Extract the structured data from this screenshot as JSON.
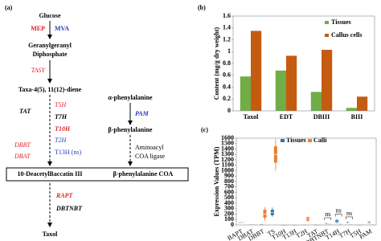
{
  "diagram": {
    "panel_label": "(a)",
    "nodes": {
      "glucose": "Glucose",
      "ggpp": [
        "Geranylgeranyl",
        "Diphosphate"
      ],
      "taxadiene": "Taxa-4(5), 11(12)-diene",
      "alpha_phe": "α-phenylalanine",
      "beta_phe": "β-phenylalanine",
      "dab": "10-DeacetylBaccatin III",
      "beta_phe_coa": "β-phenylalanine COA",
      "taxol": "Taxol"
    },
    "enzymes": {
      "mep": "MEP",
      "mva": "MVA",
      "tasy": "TASY",
      "t5h": "T5H",
      "tat": "TAT",
      "t7h": "T7H",
      "t10h": "T10H",
      "t2h": "T2H",
      "dbbt": "DBBT",
      "dbat": "DBAT",
      "t13h": "T13H (ns)",
      "pam": "PAM",
      "ligase": [
        "Aminoacyl",
        "COA ligase"
      ],
      "rapt": "RAPT",
      "dbtnbt": "DBTNBT"
    }
  },
  "chart_data": [
    {
      "type": "bar",
      "panel_label": "(b)",
      "y_label": "Content (mg/g dry weight)",
      "categories": [
        "Taxol",
        "EDT",
        "DBIII",
        "BIII"
      ],
      "series": [
        {
          "name": "Tissues",
          "color": "#70ad47",
          "values": [
            0.58,
            0.68,
            0.32,
            0.05
          ]
        },
        {
          "name": "Callus cells",
          "color": "#c55a11",
          "values": [
            1.35,
            0.93,
            1.03,
            0.24
          ]
        }
      ],
      "ylim": [
        0,
        1.6
      ],
      "yticks": [
        0,
        0.2,
        0.4,
        0.6,
        0.8,
        1,
        1.2,
        1.4,
        1.6
      ]
    },
    {
      "type": "box",
      "panel_label": "(c)",
      "y_label": "Expression Values (TPM)",
      "categories": [
        "BAPT",
        "DBAT",
        "DBBT",
        "TS",
        "T10H",
        "T13H",
        "T2H",
        "TAT",
        "DBTNBT",
        "T14H",
        "T7H",
        "T5H",
        "PAM"
      ],
      "series": [
        {
          "name": "Tissues",
          "color": "#2e75b6",
          "values": [
            [
              45,
              48,
              50,
              52,
              55
            ],
            [
              5,
              8,
              10,
              12,
              15
            ],
            [
              15,
              18,
              20,
              22,
              25
            ],
            [
              150,
              180,
              230,
              280,
              320
            ],
            [
              2,
              4,
              5,
              6,
              8
            ],
            [
              2,
              4,
              5,
              6,
              8
            ],
            [
              3,
              5,
              6,
              8,
              10
            ],
            [
              3,
              5,
              6,
              8,
              10
            ],
            [
              15,
              25,
              30,
              35,
              45
            ],
            [
              30,
              45,
              60,
              90,
              110
            ],
            [
              25,
              35,
              40,
              50,
              60
            ],
            [
              3,
              5,
              6,
              8,
              10
            ],
            [
              30,
              40,
              50,
              60,
              70
            ]
          ]
        },
        {
          "name": "Calli",
          "color": "#ed7d31",
          "values": [
            [
              48,
              50,
              52,
              54,
              56
            ],
            [
              5,
              8,
              10,
              12,
              15
            ],
            [
              80,
              130,
              200,
              280,
              330
            ],
            [
              1000,
              1150,
              1300,
              1450,
              1580
            ],
            [
              2,
              4,
              5,
              6,
              8
            ],
            [
              2,
              4,
              5,
              6,
              8
            ],
            [
              60,
              80,
              110,
              140,
              160
            ],
            [
              3,
              5,
              6,
              8,
              10
            ],
            [
              10,
              15,
              20,
              25,
              30
            ],
            [
              10,
              15,
              20,
              25,
              30
            ],
            [
              5,
              8,
              10,
              12,
              15
            ],
            [
              3,
              5,
              6,
              8,
              10
            ],
            [
              3,
              5,
              6,
              8,
              10
            ]
          ]
        }
      ],
      "annotations": [
        {
          "category": 8,
          "text": "ns"
        },
        {
          "category": 9,
          "text": "ns"
        },
        {
          "category": 10,
          "text": "ns"
        }
      ],
      "ylim": [
        0,
        1600
      ],
      "yticks": [
        0,
        100,
        200,
        300,
        400,
        500,
        600,
        700,
        800,
        900,
        1000,
        1100,
        1200,
        1300,
        1400,
        1500,
        1600
      ]
    }
  ]
}
